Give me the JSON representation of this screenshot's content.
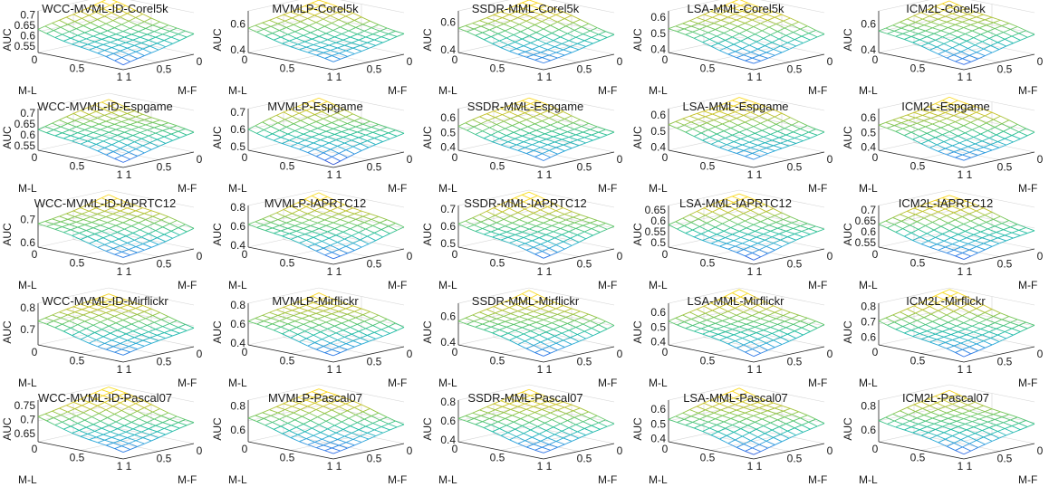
{
  "figure": {
    "colormap": [
      "#3e26a8",
      "#2f6ee8",
      "#2aa9d9",
      "#1fbea0",
      "#6cc760",
      "#c4c12b",
      "#f9d624",
      "#f4e51d"
    ],
    "background": "#ffffff"
  },
  "chart_data": [
    {
      "type": "surface",
      "title": "WCC-MVML-ID-Corel5k",
      "xlabel": "M-L",
      "ylabel": "M-F",
      "zlabel": "AUC",
      "zticks": [
        "0.55",
        "0.6",
        "0.65",
        "0.7"
      ],
      "xticks": [
        "0",
        "0.5",
        "1"
      ],
      "yticks": [
        "1",
        "0.5",
        "0"
      ],
      "zlim": [
        0.52,
        0.72
      ],
      "z_start": 0.54,
      "z_end": 0.7
    },
    {
      "type": "surface",
      "title": "MVMLP-Corel5k",
      "xlabel": "M-L",
      "ylabel": "M-F",
      "zlabel": "AUC",
      "zticks": [
        "0.4",
        "0.6"
      ],
      "xticks": [
        "0",
        "0.5",
        "1"
      ],
      "yticks": [
        "1",
        "0.5",
        "0"
      ],
      "zlim": [
        0.38,
        0.7
      ],
      "z_start": 0.43,
      "z_end": 0.66
    },
    {
      "type": "surface",
      "title": "SSDR-MML-Corel5k",
      "xlabel": "M-L",
      "ylabel": "M-F",
      "zlabel": "AUC",
      "zticks": [
        "0.4",
        "0.6"
      ],
      "xticks": [
        "0",
        "0.5",
        "1"
      ],
      "yticks": [
        "1",
        "0.5",
        "0"
      ],
      "zlim": [
        0.38,
        0.68
      ],
      "z_start": 0.42,
      "z_end": 0.65
    },
    {
      "type": "surface",
      "title": "LSA-MML-Corel5k",
      "xlabel": "M-L",
      "ylabel": "M-F",
      "zlabel": "AUC",
      "zticks": [
        "0.4",
        "0.5",
        "0.6"
      ],
      "xticks": [
        "0",
        "0.5",
        "1"
      ],
      "yticks": [
        "1",
        "0.5",
        "0"
      ],
      "zlim": [
        0.38,
        0.64
      ],
      "z_start": 0.42,
      "z_end": 0.62
    },
    {
      "type": "surface",
      "title": "ICM2L-Corel5k",
      "xlabel": "M-L",
      "ylabel": "M-F",
      "zlabel": "AUC",
      "zticks": [
        "0.4",
        "0.6"
      ],
      "xticks": [
        "0",
        "0.5",
        "1"
      ],
      "yticks": [
        "1",
        "0.5",
        "0"
      ],
      "zlim": [
        0.38,
        0.7
      ],
      "z_start": 0.43,
      "z_end": 0.66
    },
    {
      "type": "surface",
      "title": "WCC-MVML-ID-Espgame",
      "xlabel": "M-L",
      "ylabel": "M-F",
      "zlabel": "AUC",
      "zticks": [
        "0.55",
        "0.6",
        "0.65",
        "0.7"
      ],
      "xticks": [
        "0",
        "0.5",
        "1"
      ],
      "yticks": [
        "1",
        "0.5",
        "0"
      ],
      "zlim": [
        0.53,
        0.72
      ],
      "z_start": 0.56,
      "z_end": 0.69
    },
    {
      "type": "surface",
      "title": "MVMLP-Espgame",
      "xlabel": "M-L",
      "ylabel": "M-F",
      "zlabel": "AUC",
      "zticks": [
        "0.5",
        "0.6",
        "0.7"
      ],
      "xticks": [
        "0",
        "0.5",
        "1"
      ],
      "yticks": [
        "1",
        "0.5",
        "0"
      ],
      "zlim": [
        0.48,
        0.72
      ],
      "z_start": 0.5,
      "z_end": 0.69
    },
    {
      "type": "surface",
      "title": "SSDR-MML-Espgame",
      "xlabel": "M-L",
      "ylabel": "M-F",
      "zlabel": "AUC",
      "zticks": [
        "0.4",
        "0.5",
        "0.6"
      ],
      "xticks": [
        "0",
        "0.5",
        "1"
      ],
      "yticks": [
        "1",
        "0.5",
        "0"
      ],
      "zlim": [
        0.38,
        0.66
      ],
      "z_start": 0.42,
      "z_end": 0.63
    },
    {
      "type": "surface",
      "title": "LSA-MML-Espgame",
      "xlabel": "M-L",
      "ylabel": "M-F",
      "zlabel": "AUC",
      "zticks": [
        "0.4",
        "0.5",
        "0.6"
      ],
      "xticks": [
        "0",
        "0.5",
        "1"
      ],
      "yticks": [
        "1",
        "0.5",
        "0"
      ],
      "zlim": [
        0.38,
        0.64
      ],
      "z_start": 0.42,
      "z_end": 0.62
    },
    {
      "type": "surface",
      "title": "ICM2L-Espgame",
      "xlabel": "M-L",
      "ylabel": "M-F",
      "zlabel": "AUC",
      "zticks": [
        "0.4",
        "0.5",
        "0.6"
      ],
      "xticks": [
        "0",
        "0.5",
        "1"
      ],
      "yticks": [
        "1",
        "0.5",
        "0"
      ],
      "zlim": [
        0.38,
        0.66
      ],
      "z_start": 0.42,
      "z_end": 0.64
    },
    {
      "type": "surface",
      "title": "WCC-MVML-ID-IAPRTC12",
      "xlabel": "M-L",
      "ylabel": "M-F",
      "zlabel": "AUC",
      "zticks": [
        "0.6",
        "0.7"
      ],
      "xticks": [
        "0",
        "0.5",
        "1"
      ],
      "yticks": [
        "1",
        "0.5",
        "0"
      ],
      "zlim": [
        0.58,
        0.76
      ],
      "z_start": 0.61,
      "z_end": 0.74
    },
    {
      "type": "surface",
      "title": "MVMLP-IAPRTC12",
      "xlabel": "M-L",
      "ylabel": "M-F",
      "zlabel": "AUC",
      "zticks": [
        "0.4",
        "0.6",
        "0.8"
      ],
      "xticks": [
        "0",
        "0.5",
        "1"
      ],
      "yticks": [
        "1",
        "0.5",
        "0"
      ],
      "zlim": [
        0.38,
        0.82
      ],
      "z_start": 0.45,
      "z_end": 0.78
    },
    {
      "type": "surface",
      "title": "SSDR-MML-IAPRTC12",
      "xlabel": "M-L",
      "ylabel": "M-F",
      "zlabel": "AUC",
      "zticks": [
        "0.5",
        "0.6",
        "0.7"
      ],
      "xticks": [
        "0",
        "0.5",
        "1"
      ],
      "yticks": [
        "1",
        "0.5",
        "0"
      ],
      "zlim": [
        0.48,
        0.72
      ],
      "z_start": 0.52,
      "z_end": 0.7
    },
    {
      "type": "surface",
      "title": "LSA-MML-IAPRTC12",
      "xlabel": "M-L",
      "ylabel": "M-F",
      "zlabel": "AUC",
      "zticks": [
        "0.5",
        "0.55",
        "0.6",
        "0.65"
      ],
      "xticks": [
        "0",
        "0.5",
        "1"
      ],
      "yticks": [
        "1",
        "0.5",
        "0"
      ],
      "zlim": [
        0.48,
        0.67
      ],
      "z_start": 0.5,
      "z_end": 0.65
    },
    {
      "type": "surface",
      "title": "ICM2L-IAPRTC12",
      "xlabel": "M-L",
      "ylabel": "M-F",
      "zlabel": "AUC",
      "zticks": [
        "0.55",
        "0.6",
        "0.65",
        "0.7"
      ],
      "xticks": [
        "0",
        "0.5",
        "1"
      ],
      "yticks": [
        "1",
        "0.5",
        "0"
      ],
      "zlim": [
        0.53,
        0.72
      ],
      "z_start": 0.55,
      "z_end": 0.7
    },
    {
      "type": "surface",
      "title": "WCC-MVML-ID-Mirflickr",
      "xlabel": "M-L",
      "ylabel": "M-F",
      "zlabel": "AUC",
      "zticks": [
        "0.7",
        "0.8"
      ],
      "xticks": [
        "0",
        "0.5",
        "1"
      ],
      "yticks": [
        "1",
        "0.5",
        "0"
      ],
      "zlim": [
        0.63,
        0.82
      ],
      "z_start": 0.66,
      "z_end": 0.8
    },
    {
      "type": "surface",
      "title": "MVMLP-Mirflickr",
      "xlabel": "M-L",
      "ylabel": "M-F",
      "zlabel": "AUC",
      "zticks": [
        "0.4",
        "0.6",
        "0.8"
      ],
      "xticks": [
        "0",
        "0.5",
        "1"
      ],
      "yticks": [
        "1",
        "0.5",
        "0"
      ],
      "zlim": [
        0.38,
        0.82
      ],
      "z_start": 0.45,
      "z_end": 0.78
    },
    {
      "type": "surface",
      "title": "SSDR-MML-Mirflickr",
      "xlabel": "M-L",
      "ylabel": "M-F",
      "zlabel": "AUC",
      "zticks": [
        "0.4",
        "0.6"
      ],
      "xticks": [
        "0",
        "0.5",
        "1"
      ],
      "yticks": [
        "1",
        "0.5",
        "0"
      ],
      "zlim": [
        0.38,
        0.7
      ],
      "z_start": 0.43,
      "z_end": 0.68
    },
    {
      "type": "surface",
      "title": "LSA-MML-Mirflickr",
      "xlabel": "M-L",
      "ylabel": "M-F",
      "zlabel": "AUC",
      "zticks": [
        "0.4",
        "0.5",
        "0.6"
      ],
      "xticks": [
        "0",
        "0.5",
        "1"
      ],
      "yticks": [
        "1",
        "0.5",
        "0"
      ],
      "zlim": [
        0.38,
        0.66
      ],
      "z_start": 0.42,
      "z_end": 0.64
    },
    {
      "type": "surface",
      "title": "ICM2L-Mirflickr",
      "xlabel": "M-L",
      "ylabel": "M-F",
      "zlabel": "AUC",
      "zticks": [
        "0.6",
        "0.7",
        "0.8"
      ],
      "xticks": [
        "0",
        "0.5",
        "1"
      ],
      "yticks": [
        "1",
        "0.5",
        "0"
      ],
      "zlim": [
        0.55,
        0.82
      ],
      "z_start": 0.58,
      "z_end": 0.8
    },
    {
      "type": "surface",
      "title": "WCC-MVML-ID-Pascal07",
      "xlabel": "M-L",
      "ylabel": "M-F",
      "zlabel": "AUC",
      "zticks": [
        "0.65",
        "0.7",
        "0.75"
      ],
      "xticks": [
        "0",
        "0.5",
        "1"
      ],
      "yticks": [
        "1",
        "0.5",
        "0"
      ],
      "zlim": [
        0.62,
        0.77
      ],
      "z_start": 0.64,
      "z_end": 0.76
    },
    {
      "type": "surface",
      "title": "MVMLP-Pascal07",
      "xlabel": "M-L",
      "ylabel": "M-F",
      "zlabel": "AUC",
      "zticks": [
        "0.6",
        "0.8"
      ],
      "xticks": [
        "0",
        "0.5",
        "1"
      ],
      "yticks": [
        "1",
        "0.5",
        "0"
      ],
      "zlim": [
        0.5,
        0.85
      ],
      "z_start": 0.54,
      "z_end": 0.82
    },
    {
      "type": "surface",
      "title": "SSDR-MML-Pascal07",
      "xlabel": "M-L",
      "ylabel": "M-F",
      "zlabel": "AUC",
      "zticks": [
        "0.4",
        "0.6",
        "0.8"
      ],
      "xticks": [
        "0",
        "0.5",
        "1"
      ],
      "yticks": [
        "1",
        "0.5",
        "0"
      ],
      "zlim": [
        0.38,
        0.82
      ],
      "z_start": 0.45,
      "z_end": 0.78
    },
    {
      "type": "surface",
      "title": "LSA-MML-Pascal07",
      "xlabel": "M-L",
      "ylabel": "M-F",
      "zlabel": "AUC",
      "zticks": [
        "0.4",
        "0.5",
        "0.6"
      ],
      "xticks": [
        "0",
        "0.5",
        "1"
      ],
      "yticks": [
        "1",
        "0.5",
        "0"
      ],
      "zlim": [
        0.38,
        0.66
      ],
      "z_start": 0.42,
      "z_end": 0.64
    },
    {
      "type": "surface",
      "title": "ICM2L-Pascal07",
      "xlabel": "M-L",
      "ylabel": "M-F",
      "zlabel": "AUC",
      "zticks": [
        "0.6",
        "0.8"
      ],
      "xticks": [
        "0",
        "0.5",
        "1"
      ],
      "yticks": [
        "1",
        "0.5",
        "0"
      ],
      "zlim": [
        0.5,
        0.85
      ],
      "z_start": 0.55,
      "z_end": 0.8
    }
  ]
}
